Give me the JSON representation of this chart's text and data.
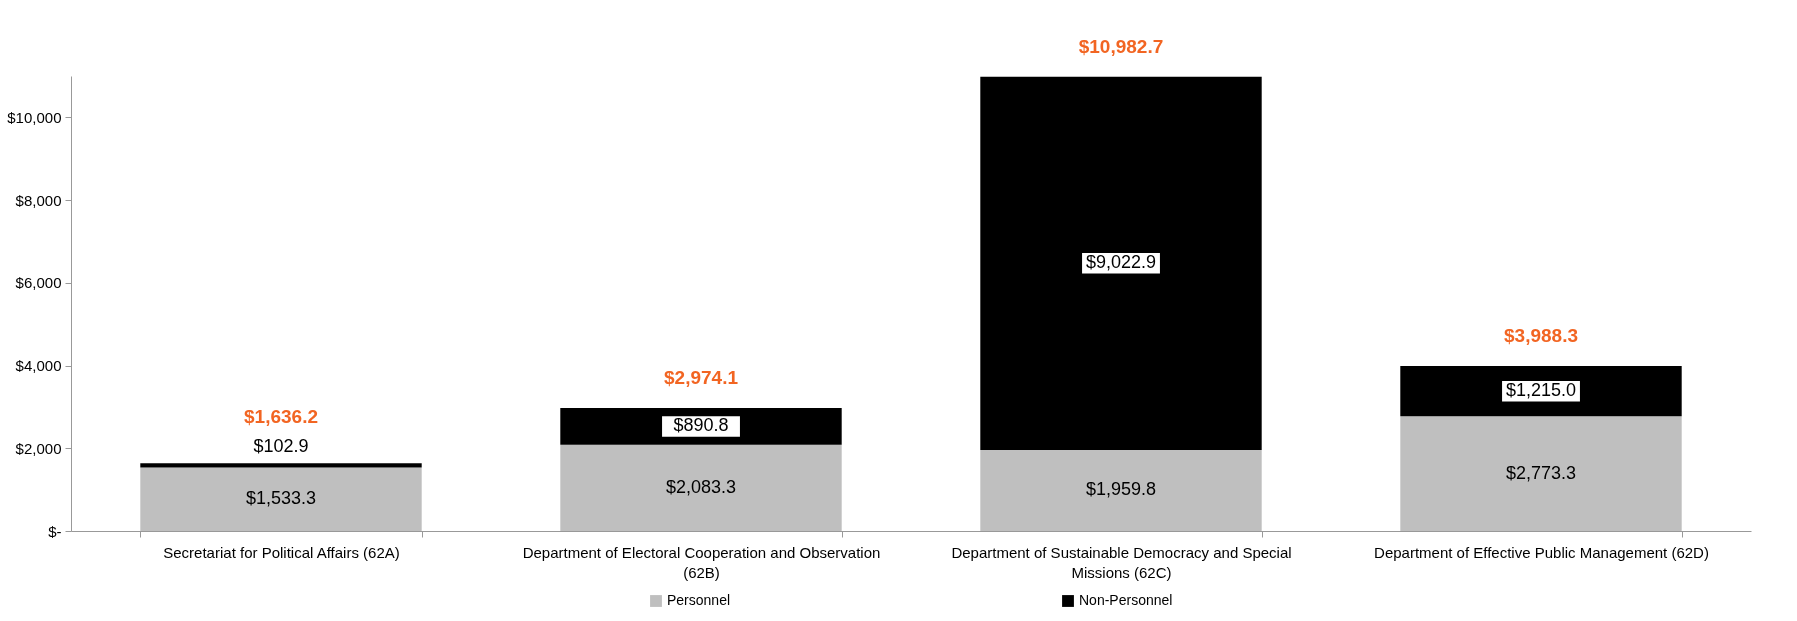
{
  "chart_data": {
    "type": "bar",
    "stacked": true,
    "categories": [
      "Secretariat for Political Affairs (62A)",
      "Department of Electoral Cooperation and Observation (62B)",
      "Department of Sustainable Democracy and Special Missions (62C)",
      "Department of Effective Public Management (62D)"
    ],
    "series": [
      {
        "name": "Personnel",
        "color": "#bfbfbf",
        "values": [
          1533.3,
          2083.3,
          1959.8,
          2773.3
        ],
        "value_labels": [
          "$1,533.3",
          "$2,083.3",
          "$1,959.8",
          "$2,773.3"
        ]
      },
      {
        "name": "Non-Personnel",
        "color": "#000000",
        "values": [
          102.9,
          890.8,
          9022.9,
          1215.0
        ],
        "value_labels": [
          "$102.9",
          "$890.8",
          "$9,022.9",
          "$1,215.0"
        ]
      }
    ],
    "totals": [
      "$1,636.2",
      "$2,974.1",
      "$10,982.7",
      "$3,988.3"
    ],
    "ylim": [
      0,
      11000
    ],
    "yticks": [
      {
        "value": 0,
        "label": "$-"
      },
      {
        "value": 2000,
        "label": "$2,000"
      },
      {
        "value": 4000,
        "label": "$4,000"
      },
      {
        "value": 6000,
        "label": "$6,000"
      },
      {
        "value": 8000,
        "label": "$8,000"
      },
      {
        "value": 10000,
        "label": "$10,000"
      }
    ],
    "grid": false,
    "legend": "bottom"
  }
}
